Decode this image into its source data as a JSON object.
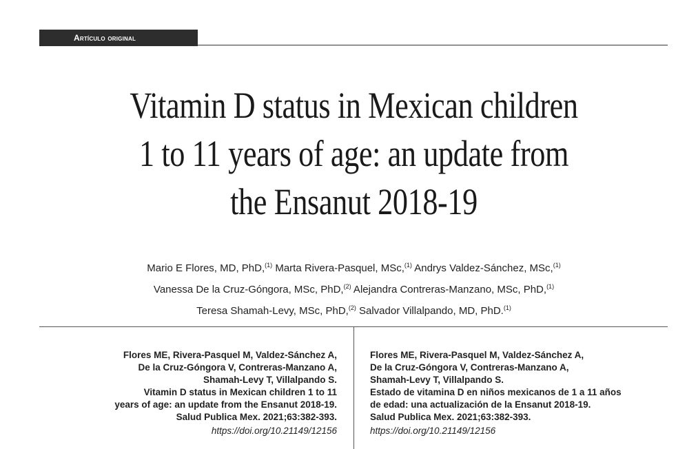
{
  "section_label": "Artículo original",
  "title_lines": [
    "Vitamin D status in Mexican children",
    "1 to 11 years of age: an update from",
    "the Ensanut 2018-19"
  ],
  "authors": {
    "line1": {
      "a1": "Mario E Flores, MD, PhD,",
      "s1": "(1)",
      "a2": " Marta Rivera-Pasquel, MSc,",
      "s2": "(1)",
      "a3": " Andrys Valdez-Sánchez, MSc,",
      "s3": "(1)"
    },
    "line2": {
      "a1": "Vanessa De la Cruz-Góngora, MSc, PhD,",
      "s1": "(2)",
      "a2": " Alejandra Contreras-Manzano, MSc, PhD,",
      "s2": "(1)"
    },
    "line3": {
      "a1": "Teresa Shamah-Levy, MSc, PhD,",
      "s1": "(2)",
      "a2": " Salvador Villalpando, MD, PhD.",
      "s2": "(1)"
    }
  },
  "citation_en": {
    "lines": [
      "Flores ME, Rivera-Pasquel M, Valdez-Sánchez A,",
      "De la Cruz-Góngora V, Contreras-Manzano A,",
      "Shamah-Levy T, Villalpando S.",
      "Vitamin D status in Mexican children 1 to 11",
      "years of age: an update from the Ensanut 2018-19.",
      "Salud Publica Mex. 2021;63:382-393."
    ],
    "doi": "https://doi.org/10.21149/12156"
  },
  "citation_es": {
    "lines": [
      "Flores ME, Rivera-Pasquel M, Valdez-Sánchez A,",
      "De la Cruz-Góngora V, Contreras-Manzano A,",
      "Shamah-Levy T, Villalpando S.",
      "Estado de vitamina D en niños mexicanos de 1 a 11 años",
      "de edad: una actualización de la Ensanut 2018-19.",
      "Salud Publica Mex. 2021;63:382-393."
    ],
    "doi": "https://doi.org/10.21149/12156"
  }
}
